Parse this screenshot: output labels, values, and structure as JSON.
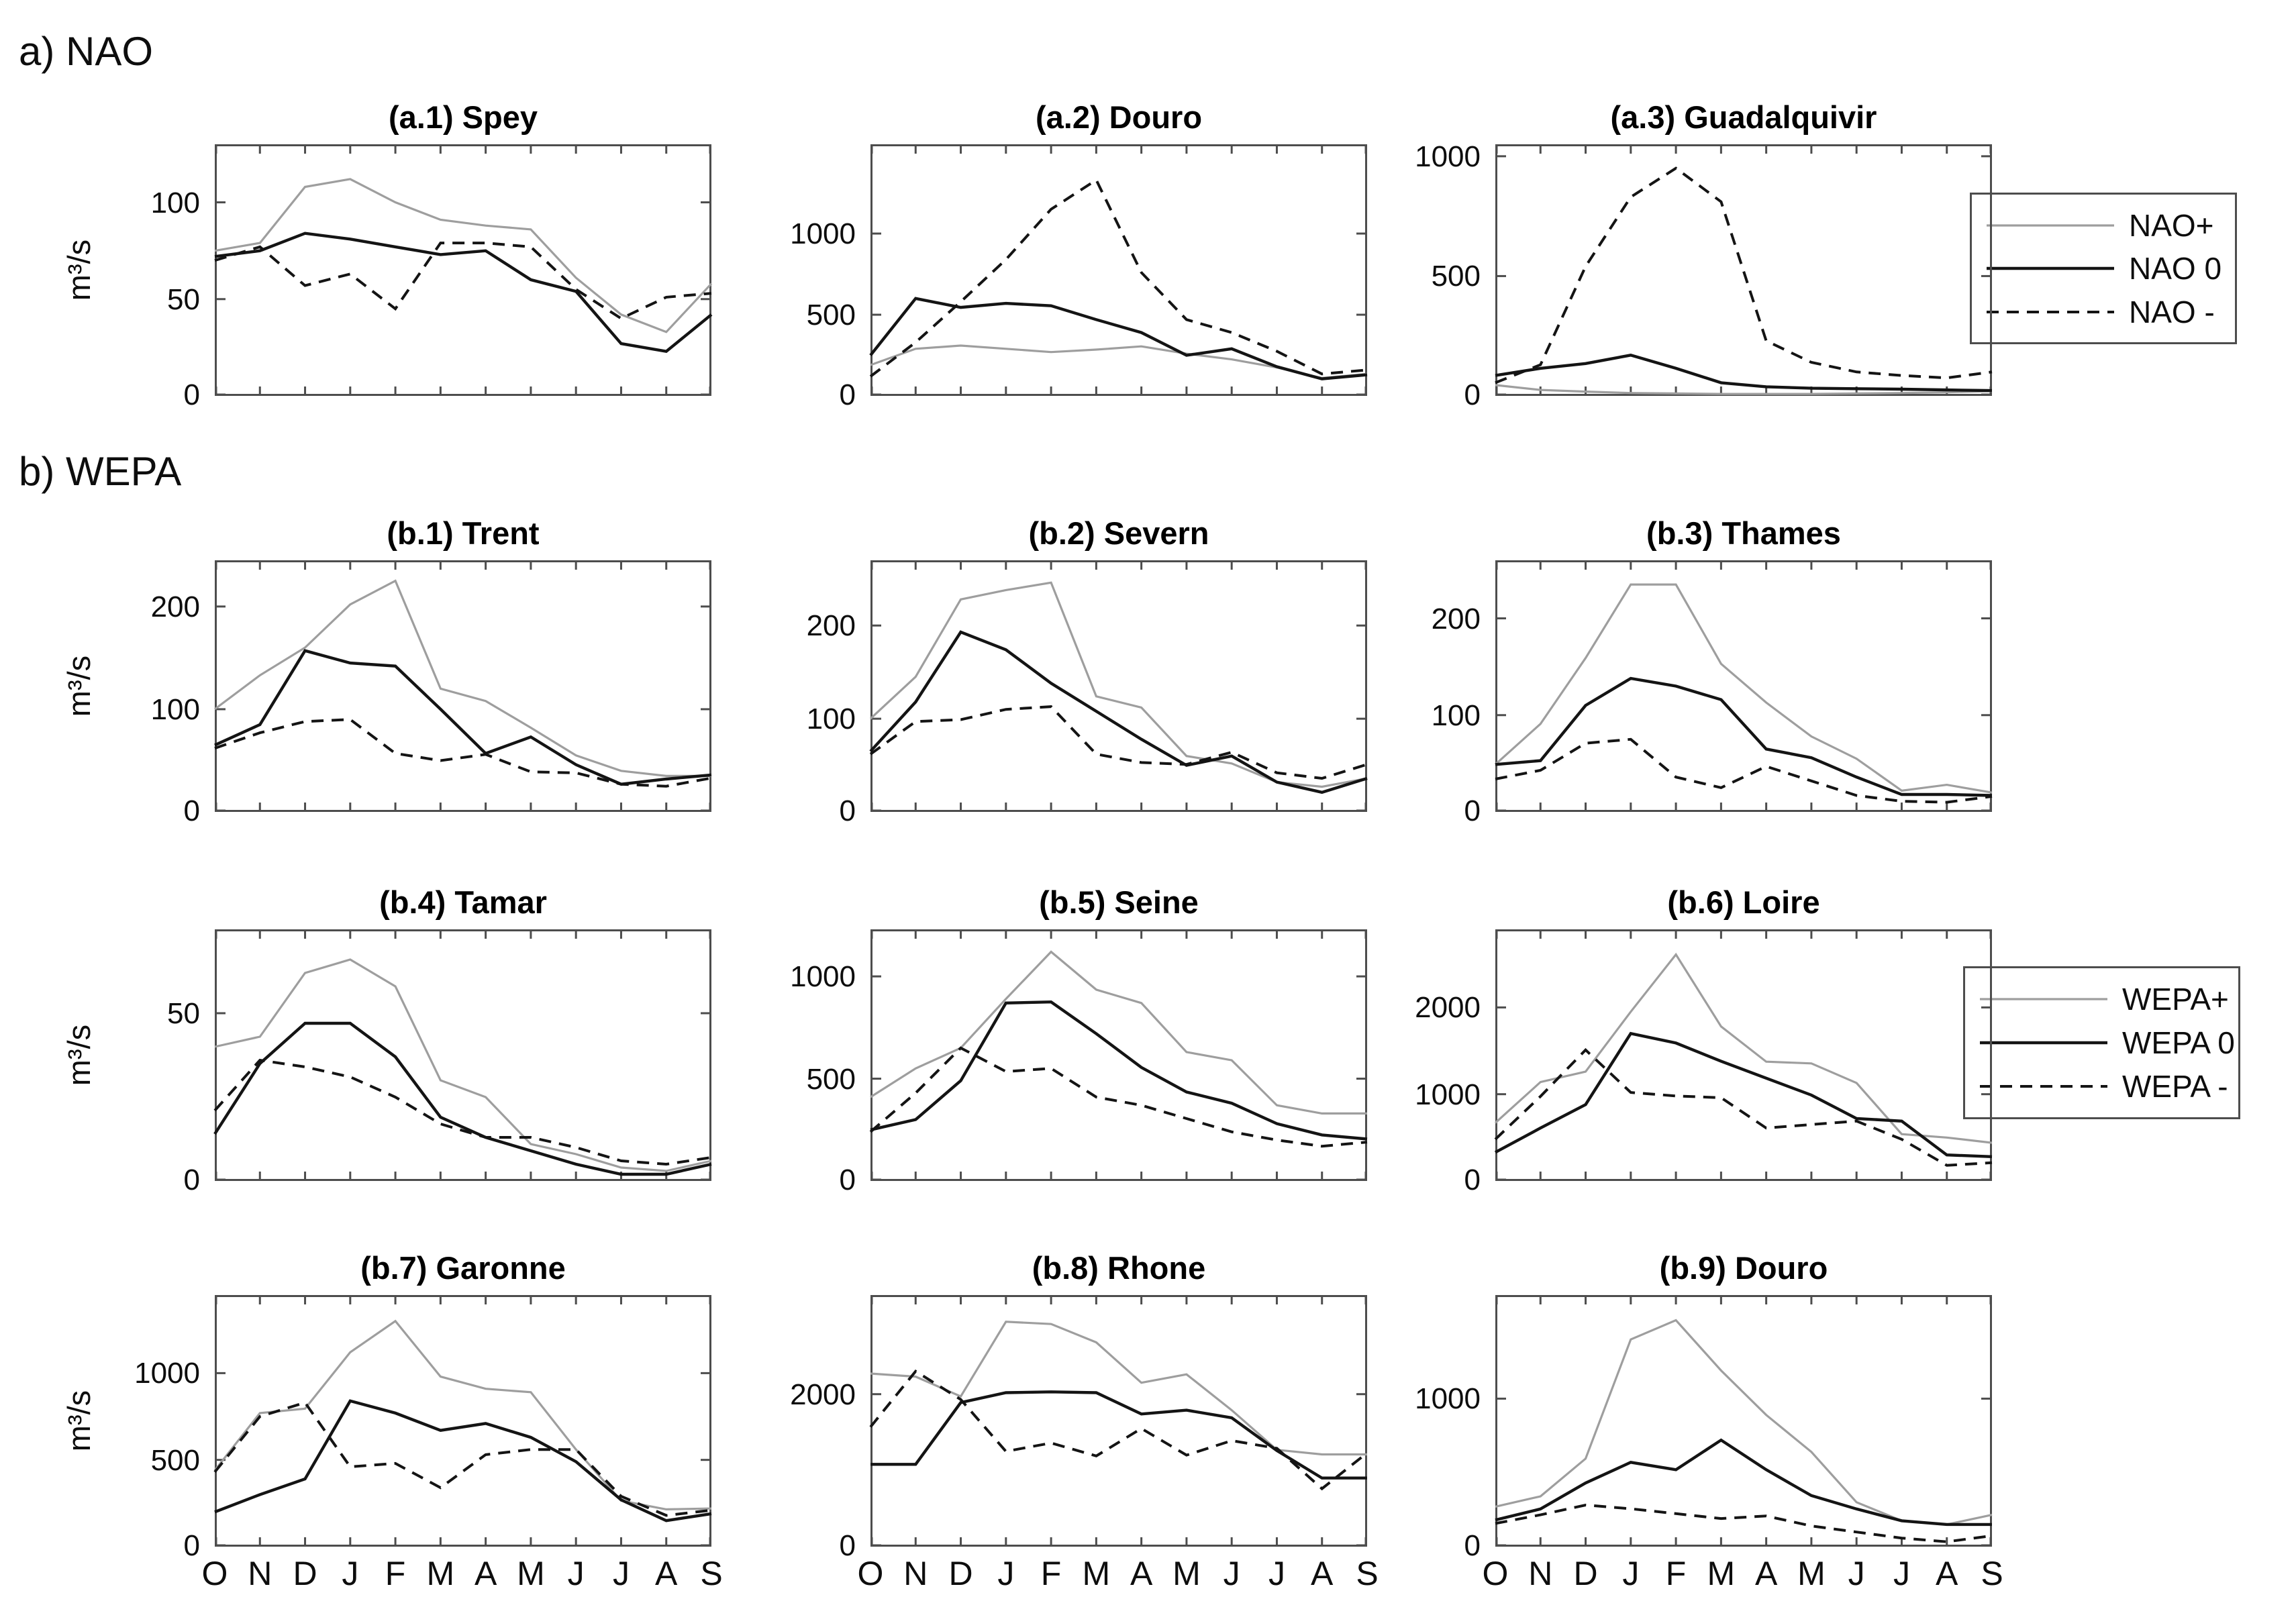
{
  "section_a_label": "a) NAO",
  "section_b_label": "b) WEPA",
  "colors": {
    "background": "#ffffff",
    "line_positive": "#9e9e9e",
    "line_neutral": "#141414",
    "line_negative": "#141414",
    "axis": "#4d4d4d",
    "text": "#000000"
  },
  "legends": [
    {
      "id": "nao",
      "items": [
        {
          "label": "NAO+",
          "style": "plus"
        },
        {
          "label": "NAO 0",
          "style": "zero"
        },
        {
          "label": "NAO -",
          "style": "minus"
        }
      ]
    },
    {
      "id": "wepa",
      "items": [
        {
          "label": "WEPA+",
          "style": "plus"
        },
        {
          "label": "WEPA 0",
          "style": "zero"
        },
        {
          "label": "WEPA -",
          "style": "minus"
        }
      ]
    }
  ],
  "chart_data": {
    "type": "line",
    "ylabel": "m³/s",
    "months": [
      "O",
      "N",
      "D",
      "J",
      "F",
      "M",
      "A",
      "M",
      "J",
      "J",
      "A",
      "S"
    ],
    "charts": [
      {
        "id": "a1",
        "title": "(a.1) Spey",
        "section": "a",
        "row": 0,
        "col": 0,
        "ylabel": "m³/s",
        "yticks": [
          0,
          50,
          100
        ],
        "ymax": 130,
        "show_month_labels": false,
        "series": [
          {
            "name": "NAO+",
            "style": "plus",
            "values": [
              75,
              79,
              108,
              112,
              100,
              91,
              88,
              86,
              61,
              42,
              33,
              58
            ]
          },
          {
            "name": "NAO 0",
            "style": "zero",
            "values": [
              72,
              75,
              84,
              81,
              77,
              73,
              75,
              60,
              54,
              27,
              23,
              42
            ]
          },
          {
            "name": "NAO -",
            "style": "minus",
            "values": [
              70,
              77,
              57,
              63,
              45,
              79,
              79,
              77,
              55,
              40,
              51,
              53
            ]
          }
        ]
      },
      {
        "id": "a2",
        "title": "(a.2) Douro",
        "section": "a",
        "row": 0,
        "col": 1,
        "ylabel": "",
        "yticks": [
          0,
          500,
          1000
        ],
        "ymax": 1550,
        "show_month_labels": false,
        "series": [
          {
            "name": "NAO+",
            "style": "plus",
            "values": [
              190,
              290,
              310,
              290,
              270,
              285,
              305,
              260,
              225,
              175,
              110,
              135
            ]
          },
          {
            "name": "NAO 0",
            "style": "zero",
            "values": [
              250,
              600,
              545,
              570,
              555,
              470,
              390,
              250,
              290,
              180,
              105,
              130
            ]
          },
          {
            "name": "NAO -",
            "style": "minus",
            "values": [
              120,
              330,
              580,
              840,
              1150,
              1330,
              760,
              470,
              390,
              275,
              135,
              160
            ]
          }
        ]
      },
      {
        "id": "a3",
        "title": "(a.3) Guadalquivir",
        "section": "a",
        "row": 0,
        "col": 2,
        "ylabel": "",
        "yticks": [
          0,
          500,
          1000
        ],
        "ymax": 1050,
        "show_month_labels": false,
        "series": [
          {
            "name": "NAO+",
            "style": "plus",
            "values": [
              45,
              25,
              18,
              12,
              10,
              8,
              8,
              8,
              10,
              12,
              15,
              20
            ]
          },
          {
            "name": "NAO 0",
            "style": "zero",
            "values": [
              85,
              115,
              135,
              170,
              115,
              55,
              38,
              32,
              30,
              28,
              25,
              22
            ]
          },
          {
            "name": "NAO -",
            "style": "minus",
            "values": [
              55,
              130,
              540,
              830,
              950,
              810,
              230,
              140,
              100,
              85,
              75,
              100
            ]
          }
        ]
      },
      {
        "id": "b1",
        "title": "(b.1) Trent",
        "section": "b",
        "row": 1,
        "col": 0,
        "ylabel": "m³/s",
        "yticks": [
          0,
          100,
          200
        ],
        "ymax": 245,
        "show_month_labels": false,
        "series": [
          {
            "name": "WEPA+",
            "style": "plus",
            "values": [
              100,
              133,
              160,
              202,
              225,
              120,
              108,
              82,
              55,
              40,
              35,
              35
            ]
          },
          {
            "name": "WEPA 0",
            "style": "zero",
            "values": [
              65,
              85,
              157,
              145,
              142,
              100,
              57,
              73,
              46,
              27,
              32,
              36
            ]
          },
          {
            "name": "WEPA -",
            "style": "minus",
            "values": [
              62,
              77,
              88,
              90,
              57,
              50,
              56,
              39,
              38,
              27,
              25,
              33
            ]
          }
        ]
      },
      {
        "id": "b2",
        "title": "(b.2) Severn",
        "section": "b",
        "row": 1,
        "col": 1,
        "ylabel": "",
        "yticks": [
          0,
          100,
          200
        ],
        "ymax": 270,
        "show_month_labels": false,
        "series": [
          {
            "name": "WEPA+",
            "style": "plus",
            "values": [
              100,
              145,
              228,
              238,
              246,
              124,
              112,
              60,
              52,
              32,
              27,
              36
            ]
          },
          {
            "name": "WEPA 0",
            "style": "zero",
            "values": [
              65,
              118,
              193,
              174,
              138,
              108,
              78,
              50,
              60,
              32,
              21,
              36
            ]
          },
          {
            "name": "WEPA -",
            "style": "minus",
            "values": [
              62,
              97,
              99,
              110,
              113,
              62,
              53,
              51,
              64,
              42,
              36,
              51
            ]
          }
        ]
      },
      {
        "id": "b3",
        "title": "(b.3) Thames",
        "section": "b",
        "row": 1,
        "col": 2,
        "ylabel": "",
        "yticks": [
          0,
          100,
          200
        ],
        "ymax": 260,
        "show_month_labels": false,
        "series": [
          {
            "name": "WEPA+",
            "style": "plus",
            "values": [
              49,
              91,
              159,
              235,
              235,
              153,
              113,
              78,
              55,
              22,
              28,
              20
            ]
          },
          {
            "name": "WEPA 0",
            "style": "zero",
            "values": [
              49,
              53,
              110,
              138,
              130,
              116,
              65,
              56,
              36,
              18,
              18,
              17
            ]
          },
          {
            "name": "WEPA -",
            "style": "minus",
            "values": [
              34,
              43,
              71,
              75,
              36,
              25,
              47,
              32,
              17,
              11,
              10,
              16
            ]
          }
        ]
      },
      {
        "id": "b4",
        "title": "(b.4) Tamar",
        "section": "b",
        "row": 2,
        "col": 0,
        "ylabel": "m³/s",
        "yticks": [
          0,
          50
        ],
        "ymax": 75,
        "show_month_labels": false,
        "series": [
          {
            "name": "WEPA+",
            "style": "plus",
            "values": [
              40,
              43,
              62,
              66,
              58,
              30,
              25,
              11,
              8,
              4,
              3,
              6
            ]
          },
          {
            "name": "WEPA 0",
            "style": "zero",
            "values": [
              14,
              35,
              47,
              47,
              37,
              19,
              13,
              9,
              5,
              2,
              2,
              5
            ]
          },
          {
            "name": "WEPA -",
            "style": "minus",
            "values": [
              21,
              36,
              34,
              31,
              25,
              17,
              13,
              13,
              10,
              6,
              5,
              7
            ]
          }
        ]
      },
      {
        "id": "b5",
        "title": "(b.5) Seine",
        "section": "b",
        "row": 2,
        "col": 1,
        "ylabel": "",
        "yticks": [
          0,
          500,
          1000
        ],
        "ymax": 1230,
        "show_month_labels": false,
        "series": [
          {
            "name": "WEPA+",
            "style": "plus",
            "values": [
              410,
              550,
              650,
              890,
              1120,
              935,
              870,
              630,
              590,
              370,
              330,
              330
            ]
          },
          {
            "name": "WEPA 0",
            "style": "zero",
            "values": [
              250,
              300,
              490,
              870,
              875,
              720,
              555,
              435,
              380,
              280,
              225,
              205
            ]
          },
          {
            "name": "WEPA -",
            "style": "minus",
            "values": [
              240,
              430,
              650,
              535,
              550,
              410,
              370,
              305,
              240,
              200,
              170,
              190
            ]
          }
        ]
      },
      {
        "id": "b6",
        "title": "(b.6) Loire",
        "section": "b",
        "row": 2,
        "col": 2,
        "ylabel": "",
        "yticks": [
          0,
          1000,
          2000
        ],
        "ymax": 2900,
        "show_month_labels": false,
        "series": [
          {
            "name": "WEPA+",
            "style": "plus",
            "values": [
              670,
              1140,
              1260,
              1950,
              2610,
              1780,
              1375,
              1355,
              1130,
              540,
              500,
              440
            ]
          },
          {
            "name": "WEPA 0",
            "style": "zero",
            "values": [
              330,
              610,
              880,
              1700,
              1590,
              1380,
              1185,
              990,
              720,
              690,
              300,
              280
            ]
          },
          {
            "name": "WEPA -",
            "style": "minus",
            "values": [
              480,
              975,
              1510,
              1020,
              980,
              960,
              610,
              650,
              690,
              480,
              180,
              210
            ]
          }
        ]
      },
      {
        "id": "b7",
        "title": "(b.7) Garonne",
        "section": "b",
        "row": 3,
        "col": 0,
        "ylabel": "m³/s",
        "yticks": [
          0,
          500,
          1000
        ],
        "ymax": 1450,
        "show_month_labels": true,
        "series": [
          {
            "name": "WEPA+",
            "style": "plus",
            "values": [
              440,
              770,
              795,
              1120,
              1300,
              980,
              910,
              890,
              560,
              265,
              215,
              220
            ]
          },
          {
            "name": "WEPA 0",
            "style": "zero",
            "values": [
              200,
              300,
              390,
              840,
              770,
              670,
              710,
              630,
              490,
              270,
              150,
              190
            ]
          },
          {
            "name": "WEPA -",
            "style": "minus",
            "values": [
              430,
              750,
              830,
              460,
              480,
              340,
              530,
              560,
              560,
              290,
              180,
              210
            ]
          }
        ]
      },
      {
        "id": "b8",
        "title": "(b.8) Rhone",
        "section": "b",
        "row": 3,
        "col": 1,
        "ylabel": "",
        "yticks": [
          0,
          2000
        ],
        "ymax": 3300,
        "show_month_labels": true,
        "series": [
          {
            "name": "WEPA+",
            "style": "plus",
            "values": [
              2270,
              2230,
              1970,
              2950,
              2920,
              2680,
              2150,
              2260,
              1790,
              1270,
              1210,
              1210
            ]
          },
          {
            "name": "WEPA 0",
            "style": "zero",
            "values": [
              1080,
              1080,
              1890,
              2020,
              2030,
              2020,
              1740,
              1790,
              1690,
              1260,
              900,
              900
            ]
          },
          {
            "name": "WEPA -",
            "style": "minus",
            "values": [
              1570,
              2300,
              1930,
              1250,
              1360,
              1190,
              1550,
              1200,
              1390,
              1290,
              760,
              1230
            ]
          }
        ]
      },
      {
        "id": "b9",
        "title": "(b.9) Douro",
        "section": "b",
        "row": 3,
        "col": 2,
        "ylabel": "",
        "yticks": [
          0,
          1000
        ],
        "ymax": 1700,
        "show_month_labels": true,
        "series": [
          {
            "name": "WEPA+",
            "style": "plus",
            "values": [
              270,
              340,
              595,
              1400,
              1530,
              1190,
              890,
              640,
              300,
              175,
              150,
              215
            ]
          },
          {
            "name": "WEPA 0",
            "style": "zero",
            "values": [
              180,
              255,
              430,
              570,
              520,
              720,
              520,
              345,
              255,
              175,
              150,
              150
            ]
          },
          {
            "name": "WEPA -",
            "style": "minus",
            "values": [
              157,
              215,
              281,
              256,
              223,
              190,
              207,
              140,
              99,
              58,
              33,
              74
            ]
          }
        ]
      }
    ]
  }
}
